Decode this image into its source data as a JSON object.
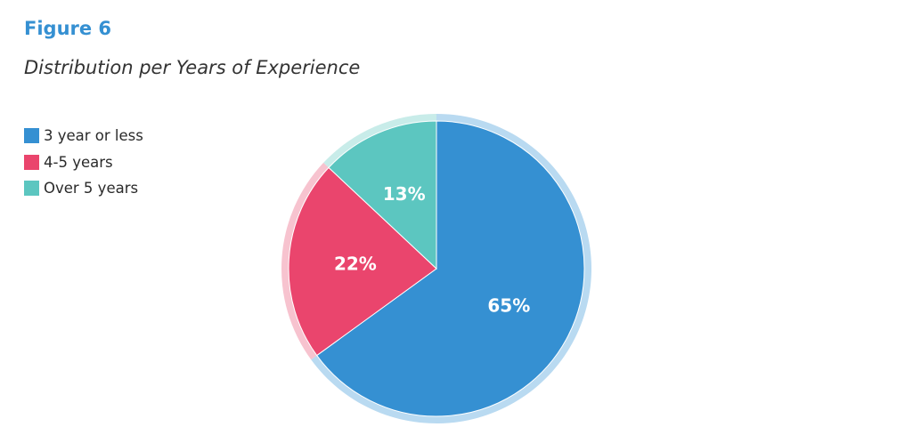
{
  "figure": {
    "label": "Figure 6",
    "title": "Distribution per Years of Experience"
  },
  "chart_data": {
    "type": "pie",
    "title": "Distribution per Years of Experience",
    "start_angle_deg": 0,
    "direction": "clockwise",
    "legend_position": "top-left",
    "slices": [
      {
        "label": "3 year or less",
        "value": 65,
        "display": "65%",
        "color": "#3590d2",
        "halo_color": "#b9daf1"
      },
      {
        "label": "4-5 years",
        "value": 22,
        "display": "22%",
        "color": "#ea456d",
        "halo_color": "#f7c3cf"
      },
      {
        "label": "Over 5 years",
        "value": 13,
        "display": "13%",
        "color": "#5cc6c0",
        "halo_color": "#c8ece9"
      }
    ]
  }
}
